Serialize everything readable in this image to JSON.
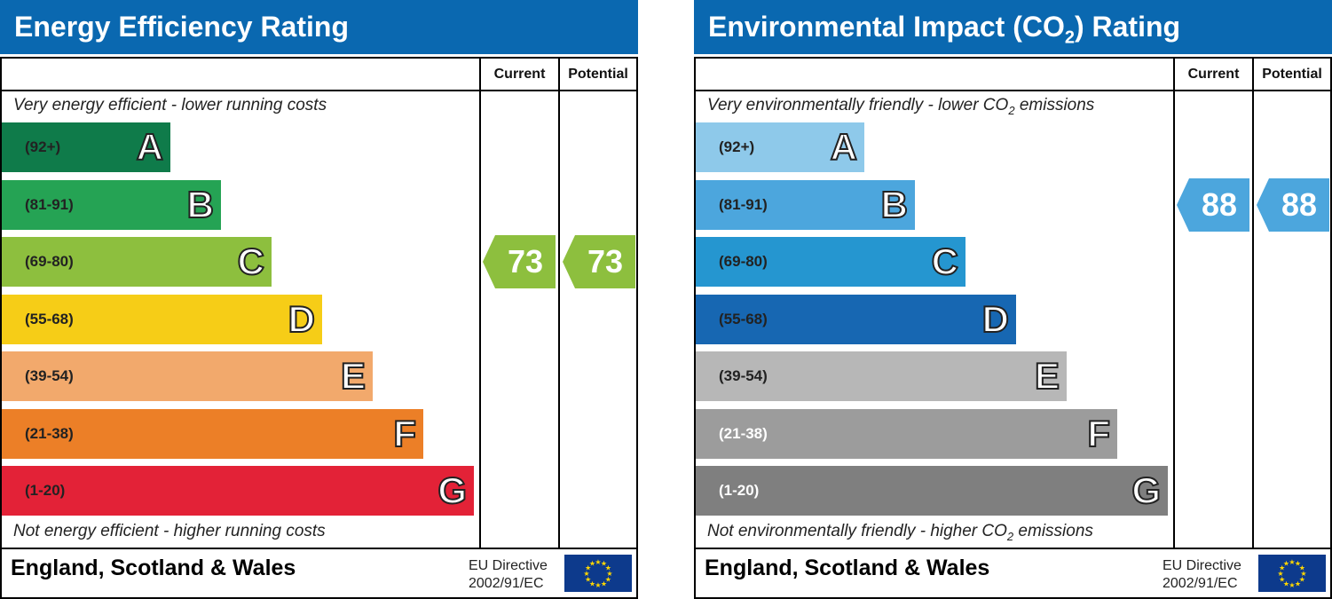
{
  "panels": [
    {
      "title": "Energy Efficiency Rating",
      "col_current": "Current",
      "col_potential": "Potential",
      "top_note": "Very energy efficient - lower running costs",
      "bottom_note": "Not energy efficient - higher running costs",
      "footer": "England, Scotland & Wales",
      "eu_line1": "EU Directive",
      "eu_line2": "2002/91/EC"
    },
    {
      "title_pre": "Environmental Impact (CO",
      "title_sub": "2",
      "title_post": ") Rating",
      "col_current": "Current",
      "col_potential": "Potential",
      "top_note_pre": "Very environmentally friendly - lower CO",
      "top_note_sub": "2",
      "top_note_post": " emissions",
      "bottom_note_pre": "Not environmentally friendly - higher CO",
      "bottom_note_sub": "2",
      "bottom_note_post": " emissions",
      "footer": "England, Scotland & Wales",
      "eu_line1": "EU Directive",
      "eu_line2": "2002/91/EC"
    }
  ],
  "chart_data": [
    {
      "type": "bar",
      "title": "Energy Efficiency Rating",
      "categories": [
        "A",
        "B",
        "C",
        "D",
        "E",
        "F",
        "G"
      ],
      "ranges": [
        "(92+)",
        "(81-91)",
        "(69-80)",
        "(55-68)",
        "(39-54)",
        "(21-38)",
        "(1-20)"
      ],
      "colors": [
        "#0f7b4a",
        "#25a354",
        "#8dbf3e",
        "#f6cd17",
        "#f2a96c",
        "#ec7f27",
        "#e32237"
      ],
      "current": 73,
      "potential": 73,
      "current_band": "C",
      "potential_band": "C",
      "indicator_color": "#8dbf3e"
    },
    {
      "type": "bar",
      "title": "Environmental Impact (CO2) Rating",
      "categories": [
        "A",
        "B",
        "C",
        "D",
        "E",
        "F",
        "G"
      ],
      "ranges": [
        "(92+)",
        "(81-91)",
        "(69-80)",
        "(55-68)",
        "(39-54)",
        "(21-38)",
        "(1-20)"
      ],
      "colors": [
        "#8ec9ea",
        "#4ca6dd",
        "#2596d0",
        "#1767b2",
        "#b7b7b7",
        "#9c9c9c",
        "#7f7f7f"
      ],
      "current": 88,
      "potential": 88,
      "current_band": "B",
      "potential_band": "B",
      "indicator_color": "#4ca6dd"
    }
  ]
}
